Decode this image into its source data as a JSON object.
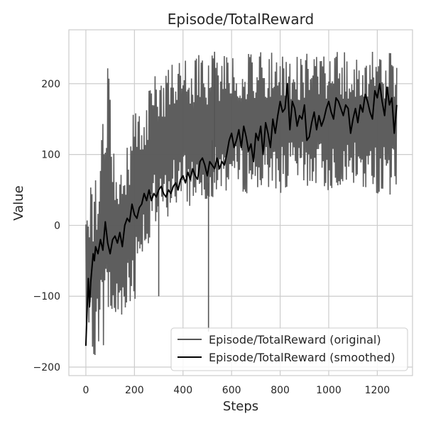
{
  "chart_data": {
    "type": "line",
    "title": "Episode/TotalReward",
    "xlabel": "Steps",
    "ylabel": "Value",
    "xlim": [
      -70,
      1345
    ],
    "ylim": [
      -212,
      276
    ],
    "xticks": [
      0,
      200,
      400,
      600,
      800,
      1000,
      1200
    ],
    "yticks": [
      -200,
      -100,
      0,
      100,
      200
    ],
    "grid": true,
    "legend_position": "lower-right",
    "series": [
      {
        "name": "Episode/TotalReward (original)",
        "color": "#555555",
        "x_start": 0,
        "x_step": 20,
        "y_min": [
          -165,
          -190,
          -185,
          -160,
          -180,
          -150,
          -160,
          -140,
          -120,
          -135,
          -110,
          -60,
          -30,
          -60,
          -10,
          -20,
          0,
          10,
          20,
          25,
          30,
          20,
          30,
          30,
          25,
          30,
          40,
          40,
          45,
          45,
          50,
          40,
          45,
          45,
          40,
          45,
          45,
          45,
          50,
          50,
          45,
          45,
          50,
          55,
          50,
          50,
          55,
          50,
          50,
          50,
          45,
          50,
          55,
          55,
          50,
          50,
          50,
          45,
          45,
          40,
          45,
          40,
          40,
          40,
          45
        ],
        "y_max": [
          45,
          60,
          70,
          95,
          225,
          228,
          85,
          90,
          90,
          150,
          190,
          175,
          170,
          190,
          230,
          240,
          220,
          230,
          245,
          237,
          238,
          238,
          240,
          240,
          245,
          245,
          244,
          245,
          245,
          245,
          245,
          245,
          245,
          245,
          245,
          245,
          245,
          245,
          245,
          245,
          245,
          245,
          245,
          245,
          245,
          245,
          245,
          245,
          245,
          245,
          245,
          245,
          245,
          245,
          245,
          245,
          245,
          245,
          245,
          245,
          245,
          245,
          245,
          245,
          245
        ],
        "spikes": [
          [
            505,
            -150
          ],
          [
            300,
            -100
          ],
          [
            520,
            120
          ],
          [
            530,
            245
          ]
        ]
      },
      {
        "name": "Episode/TotalReward (smoothed)",
        "color": "#000000",
        "x": [
          0,
          5,
          10,
          15,
          20,
          25,
          30,
          35,
          40,
          50,
          60,
          70,
          80,
          90,
          100,
          110,
          120,
          130,
          140,
          150,
          160,
          170,
          180,
          190,
          200,
          210,
          220,
          230,
          240,
          250,
          260,
          270,
          280,
          290,
          300,
          310,
          320,
          330,
          340,
          350,
          360,
          370,
          380,
          390,
          400,
          410,
          420,
          430,
          440,
          450,
          460,
          470,
          480,
          490,
          500,
          510,
          520,
          530,
          540,
          550,
          560,
          570,
          580,
          590,
          600,
          610,
          620,
          630,
          640,
          650,
          660,
          670,
          680,
          690,
          700,
          710,
          720,
          730,
          740,
          750,
          760,
          770,
          780,
          790,
          800,
          810,
          820,
          830,
          840,
          850,
          860,
          870,
          880,
          890,
          900,
          910,
          920,
          930,
          940,
          950,
          960,
          970,
          980,
          990,
          1000,
          1010,
          1020,
          1030,
          1040,
          1050,
          1060,
          1070,
          1080,
          1090,
          1100,
          1110,
          1120,
          1130,
          1140,
          1150,
          1160,
          1170,
          1180,
          1190,
          1200,
          1210,
          1220,
          1230,
          1240,
          1250,
          1260,
          1270,
          1280
        ],
        "y": [
          -170,
          -120,
          -75,
          -115,
          -80,
          -60,
          -40,
          -50,
          -30,
          -40,
          -20,
          -35,
          5,
          -25,
          -40,
          -20,
          -15,
          -25,
          -10,
          -30,
          0,
          10,
          5,
          30,
          15,
          10,
          25,
          30,
          45,
          35,
          50,
          35,
          45,
          40,
          50,
          55,
          45,
          40,
          50,
          45,
          55,
          60,
          50,
          65,
          70,
          60,
          75,
          65,
          80,
          70,
          65,
          90,
          95,
          85,
          70,
          90,
          85,
          80,
          95,
          80,
          90,
          85,
          100,
          120,
          130,
          110,
          120,
          135,
          110,
          140,
          125,
          105,
          115,
          90,
          130,
          120,
          140,
          100,
          145,
          130,
          110,
          150,
          130,
          155,
          175,
          160,
          165,
          200,
          135,
          175,
          165,
          140,
          155,
          150,
          170,
          120,
          125,
          145,
          160,
          135,
          155,
          140,
          150,
          165,
          175,
          160,
          150,
          180,
          175,
          165,
          155,
          170,
          165,
          130,
          150,
          165,
          145,
          170,
          160,
          185,
          175,
          160,
          150,
          190,
          180,
          200,
          175,
          155,
          195,
          170,
          180,
          130,
          170
        ]
      }
    ]
  }
}
